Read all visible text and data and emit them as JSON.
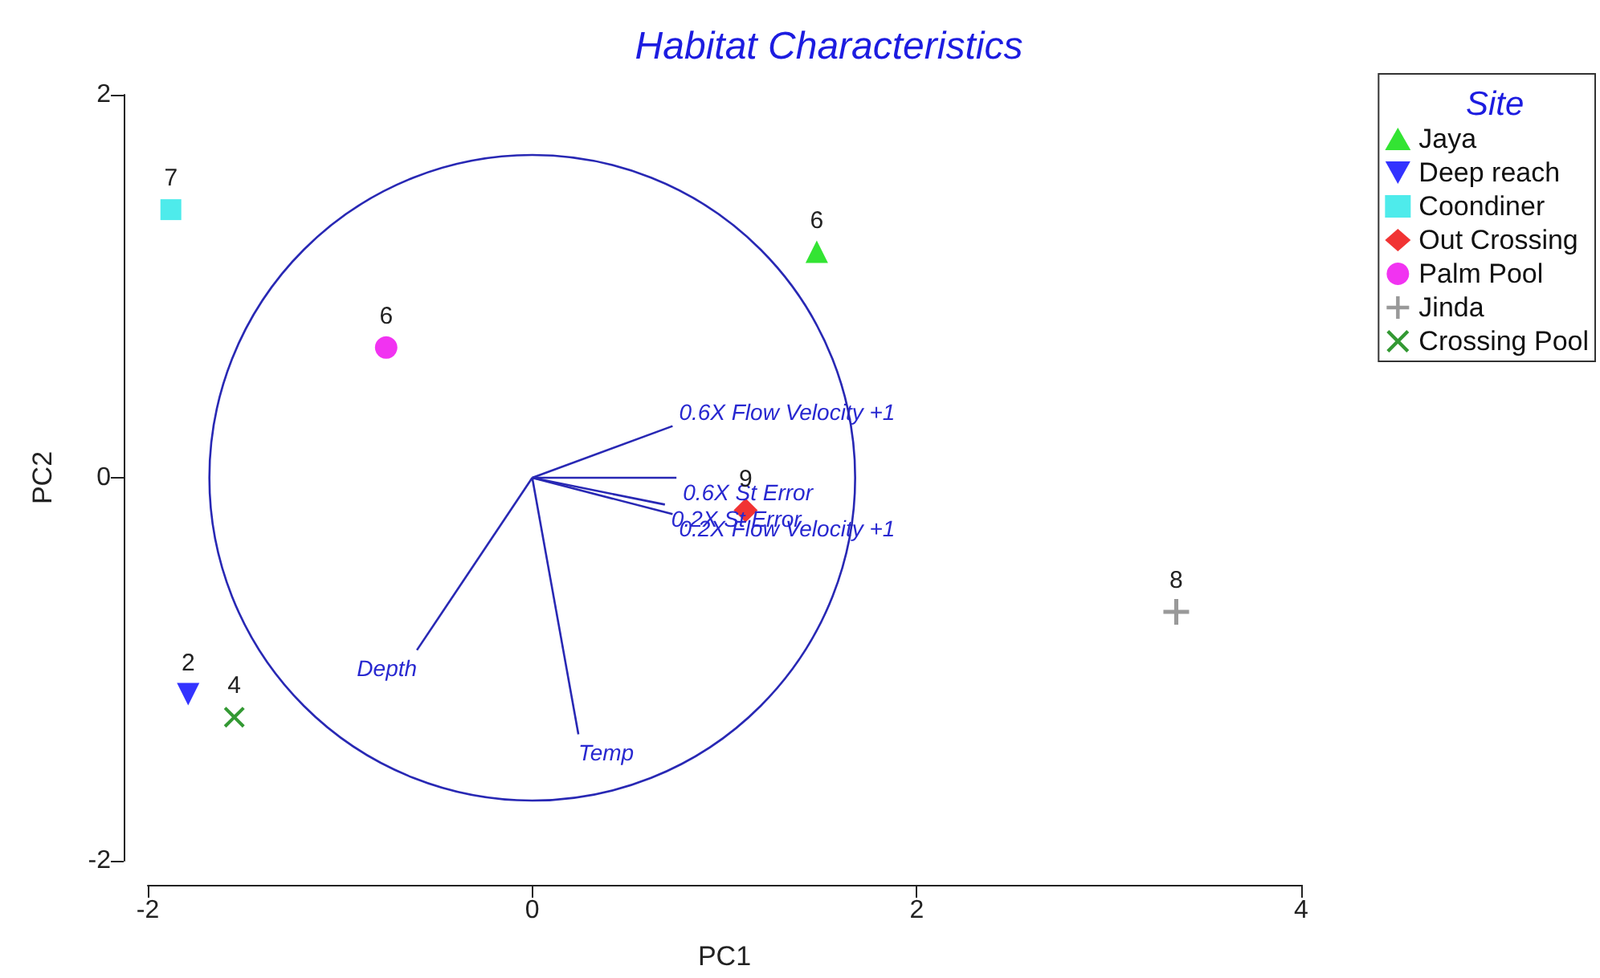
{
  "chart_data": {
    "type": "scatter",
    "title": "Habitat Characteristics",
    "xlabel": "PC1",
    "ylabel": "PC2",
    "legend_title": "Site",
    "legend": "top right",
    "grid": false,
    "xlim": [
      -2,
      4
    ],
    "xticks": [
      -2,
      0,
      2,
      4
    ],
    "ylim": [
      -2,
      2
    ],
    "yticks": [
      -2,
      0,
      2
    ],
    "series": [
      {
        "name": "Jaya",
        "color": "#00dd00",
        "marker": "triangle",
        "x": [
          1.48
        ],
        "values": [
          1.18
        ]
      },
      {
        "name": "Deep reach",
        "color": "#0000ff",
        "marker": "triangle-down",
        "x": [
          -1.79
        ],
        "values": [
          -1.13
        ]
      },
      {
        "name": "Coondiner",
        "color": "#22e6e6",
        "marker": "square",
        "x": [
          -1.88
        ],
        "values": [
          1.4
        ]
      },
      {
        "name": "Out Crossing",
        "color": "#ee0000",
        "marker": "diamond",
        "x": [
          1.11
        ],
        "values": [
          -0.17
        ]
      },
      {
        "name": "Palm Pool",
        "color": "#ee00ee",
        "marker": "circle",
        "x": [
          -0.76
        ],
        "values": [
          0.68
        ]
      },
      {
        "name": "Jinda",
        "color": "#808080",
        "marker": "plus",
        "x": [
          3.35
        ],
        "values": [
          -0.7
        ]
      },
      {
        "name": "Crossing Pool",
        "color": "#008000",
        "marker": "cross",
        "x": [
          -1.55
        ],
        "values": [
          -1.25
        ]
      },
      {
        "type": "line",
        "color": "#2828b4",
        "x": [
          0,
          0.73
        ],
        "values": [
          0,
          0.27
        ]
      },
      {
        "type": "line",
        "color": "#2828b4",
        "x": [
          0,
          0.75
        ],
        "values": [
          0,
          0
        ]
      },
      {
        "type": "line",
        "color": "#2828b4",
        "x": [
          0,
          0.69
        ],
        "values": [
          0,
          -0.14
        ]
      },
      {
        "type": "line",
        "color": "#2828b4",
        "x": [
          0,
          0.73
        ],
        "values": [
          0,
          -0.19
        ]
      },
      {
        "type": "line",
        "color": "#2828b4",
        "x": [
          0,
          -0.6
        ],
        "values": [
          0,
          -0.9
        ]
      },
      {
        "type": "line",
        "color": "#2828b4",
        "x": [
          0,
          0.24
        ],
        "values": [
          0,
          -1.34
        ]
      }
    ],
    "annotations": [
      {
        "text": "0.6X Flow Velocity +1",
        "x": 0.73,
        "y": 0.27
      },
      {
        "text": "0.6X St Error",
        "x": 0.75,
        "y": 0
      },
      {
        "text": "0.2X St Error",
        "x": 0.69,
        "y": -0.14
      },
      {
        "text": "0.2X Flow Velocity +1",
        "x": 0.73,
        "y": -0.19
      },
      {
        "text": "Depth",
        "x": -0.6,
        "y": -0.9
      },
      {
        "text": "Temp",
        "x": 0.24,
        "y": -1.34
      },
      {
        "text": "6",
        "x": 1.48,
        "y": 1.18
      },
      {
        "text": "2",
        "x": -1.79,
        "y": -1.13
      },
      {
        "text": "7",
        "x": -1.88,
        "y": 1.4
      },
      {
        "text": "9",
        "x": 1.11,
        "y": -0.17
      },
      {
        "text": "6",
        "x": -0.76,
        "y": 0.68
      },
      {
        "text": "8",
        "x": 3.35,
        "y": -0.7
      },
      {
        "text": "4",
        "x": -1.55,
        "y": -1.25
      }
    ]
  }
}
